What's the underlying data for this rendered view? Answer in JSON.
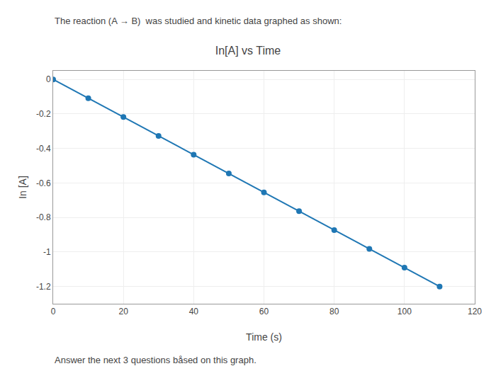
{
  "chart_data": {
    "type": "line",
    "title": "In[A] vs Time",
    "xlabel": "Time (s)",
    "ylabel": "In [A]",
    "annotations": [
      "The reaction (A → B)  was studied and kinetic data graphed as shown:",
      "Answer the next 3 questions båsed on this graph."
    ],
    "x": [
      0,
      10,
      20,
      30,
      40,
      50,
      60,
      70,
      80,
      90,
      100,
      110
    ],
    "values": [
      0,
      -0.109,
      -0.218,
      -0.327,
      -0.436,
      -0.545,
      -0.655,
      -0.764,
      -0.873,
      -0.982,
      -1.091,
      -1.2
    ],
    "marker": "circle",
    "line_style": "solid",
    "xlim": [
      0,
      120
    ],
    "ylim": [
      -1.3,
      0.05
    ],
    "xticks": [
      0,
      20,
      40,
      60,
      80,
      100,
      120
    ],
    "yticks": [
      0,
      -0.2,
      -0.4,
      -0.6,
      -0.8,
      -1,
      -1.2
    ],
    "grid": true
  }
}
